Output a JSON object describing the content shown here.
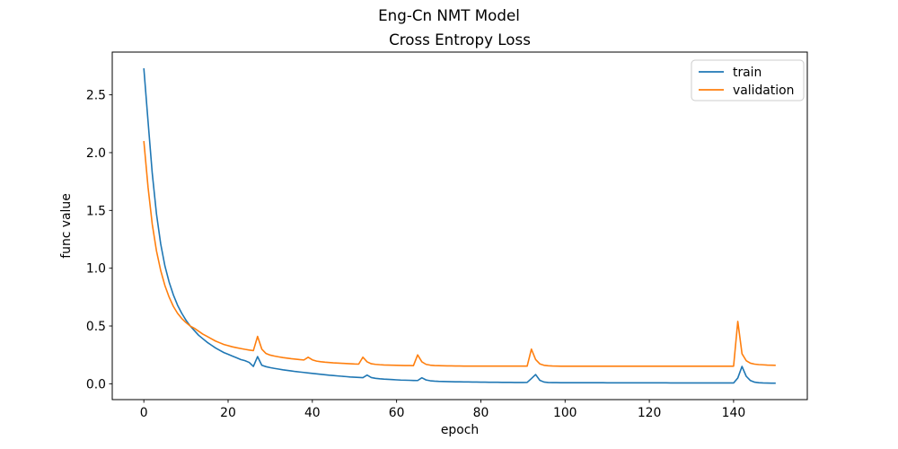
{
  "figure": {
    "suptitle": "Eng-Cn NMT Model",
    "background_color": "#ffffff",
    "text_color": "#000000",
    "spine_color": "#000000"
  },
  "chart_data": {
    "type": "line",
    "title": "Cross Entropy Loss",
    "xlabel": "epoch",
    "ylabel": "func value",
    "grid": false,
    "xlim": [
      -7.5,
      157.5
    ],
    "ylim": [
      -0.137,
      2.87
    ],
    "x_ticks": [
      0,
      20,
      40,
      60,
      80,
      100,
      120,
      140
    ],
    "y_tick_labels": [
      "0.0",
      "0.5",
      "1.0",
      "1.5",
      "2.0",
      "2.5"
    ],
    "y_ticks": [
      0.0,
      0.5,
      1.0,
      1.5,
      2.0,
      2.5
    ],
    "legend": {
      "position": "upper right",
      "entries": [
        "train",
        "validation"
      ]
    },
    "x": [
      0,
      1,
      2,
      3,
      4,
      5,
      6,
      7,
      8,
      9,
      10,
      11,
      12,
      13,
      14,
      15,
      16,
      17,
      18,
      19,
      20,
      21,
      22,
      23,
      24,
      25,
      26,
      27,
      28,
      29,
      30,
      31,
      32,
      33,
      34,
      35,
      36,
      37,
      38,
      39,
      40,
      41,
      42,
      43,
      44,
      45,
      46,
      47,
      48,
      49,
      50,
      51,
      52,
      53,
      54,
      55,
      56,
      57,
      58,
      59,
      60,
      61,
      62,
      63,
      64,
      65,
      66,
      67,
      68,
      69,
      70,
      71,
      72,
      73,
      74,
      75,
      76,
      77,
      78,
      79,
      80,
      81,
      82,
      83,
      84,
      85,
      86,
      87,
      88,
      89,
      90,
      91,
      92,
      93,
      94,
      95,
      96,
      97,
      98,
      99,
      100,
      101,
      102,
      103,
      104,
      105,
      106,
      107,
      108,
      109,
      110,
      111,
      112,
      113,
      114,
      115,
      116,
      117,
      118,
      119,
      120,
      121,
      122,
      123,
      124,
      125,
      126,
      127,
      128,
      129,
      130,
      131,
      132,
      133,
      134,
      135,
      136,
      137,
      138,
      139,
      140,
      141,
      142,
      143,
      144,
      145,
      146,
      147,
      148,
      149,
      150
    ],
    "series": [
      {
        "name": "train",
        "color": "#1f77b4",
        "values": [
          2.73,
          2.27,
          1.82,
          1.47,
          1.21,
          1.02,
          0.88,
          0.77,
          0.68,
          0.61,
          0.55,
          0.5,
          0.46,
          0.42,
          0.39,
          0.36,
          0.335,
          0.31,
          0.29,
          0.27,
          0.255,
          0.24,
          0.225,
          0.21,
          0.2,
          0.185,
          0.15,
          0.235,
          0.16,
          0.148,
          0.14,
          0.133,
          0.127,
          0.121,
          0.116,
          0.111,
          0.106,
          0.102,
          0.098,
          0.094,
          0.09,
          0.086,
          0.082,
          0.078,
          0.074,
          0.071,
          0.068,
          0.065,
          0.062,
          0.059,
          0.057,
          0.055,
          0.053,
          0.075,
          0.054,
          0.047,
          0.043,
          0.04,
          0.038,
          0.036,
          0.034,
          0.032,
          0.031,
          0.03,
          0.029,
          0.028,
          0.052,
          0.033,
          0.026,
          0.023,
          0.021,
          0.02,
          0.019,
          0.018,
          0.017,
          0.017,
          0.016,
          0.016,
          0.015,
          0.015,
          0.014,
          0.014,
          0.013,
          0.013,
          0.013,
          0.012,
          0.012,
          0.012,
          0.011,
          0.011,
          0.011,
          0.012,
          0.045,
          0.08,
          0.03,
          0.015,
          0.011,
          0.01,
          0.01,
          0.009,
          0.009,
          0.009,
          0.009,
          0.009,
          0.009,
          0.009,
          0.009,
          0.009,
          0.009,
          0.009,
          0.008,
          0.008,
          0.008,
          0.008,
          0.008,
          0.008,
          0.008,
          0.008,
          0.008,
          0.008,
          0.008,
          0.008,
          0.008,
          0.008,
          0.008,
          0.007,
          0.007,
          0.007,
          0.007,
          0.007,
          0.007,
          0.007,
          0.007,
          0.007,
          0.007,
          0.007,
          0.007,
          0.007,
          0.007,
          0.007,
          0.007,
          0.05,
          0.15,
          0.065,
          0.028,
          0.014,
          0.009,
          0.007,
          0.006,
          0.005,
          0.005
        ]
      },
      {
        "name": "validation",
        "color": "#ff7f0e",
        "values": [
          2.1,
          1.7,
          1.38,
          1.15,
          0.98,
          0.85,
          0.75,
          0.67,
          0.61,
          0.565,
          0.53,
          0.5,
          0.48,
          0.455,
          0.43,
          0.41,
          0.39,
          0.37,
          0.355,
          0.34,
          0.33,
          0.32,
          0.312,
          0.305,
          0.298,
          0.292,
          0.287,
          0.41,
          0.3,
          0.262,
          0.248,
          0.24,
          0.233,
          0.227,
          0.222,
          0.217,
          0.213,
          0.209,
          0.206,
          0.23,
          0.207,
          0.196,
          0.191,
          0.187,
          0.184,
          0.181,
          0.179,
          0.177,
          0.175,
          0.173,
          0.171,
          0.17,
          0.23,
          0.19,
          0.173,
          0.168,
          0.165,
          0.163,
          0.162,
          0.161,
          0.16,
          0.159,
          0.158,
          0.158,
          0.157,
          0.25,
          0.19,
          0.168,
          0.161,
          0.158,
          0.157,
          0.156,
          0.155,
          0.155,
          0.154,
          0.154,
          0.153,
          0.153,
          0.153,
          0.153,
          0.153,
          0.153,
          0.153,
          0.153,
          0.153,
          0.153,
          0.153,
          0.153,
          0.153,
          0.153,
          0.153,
          0.153,
          0.3,
          0.21,
          0.172,
          0.16,
          0.156,
          0.154,
          0.153,
          0.152,
          0.152,
          0.152,
          0.152,
          0.152,
          0.152,
          0.152,
          0.152,
          0.152,
          0.152,
          0.152,
          0.152,
          0.152,
          0.152,
          0.152,
          0.152,
          0.152,
          0.152,
          0.152,
          0.152,
          0.152,
          0.152,
          0.152,
          0.152,
          0.152,
          0.152,
          0.152,
          0.152,
          0.152,
          0.152,
          0.152,
          0.152,
          0.152,
          0.152,
          0.152,
          0.152,
          0.152,
          0.152,
          0.152,
          0.152,
          0.152,
          0.152,
          0.54,
          0.26,
          0.2,
          0.178,
          0.17,
          0.166,
          0.164,
          0.162,
          0.161,
          0.16
        ]
      }
    ]
  }
}
